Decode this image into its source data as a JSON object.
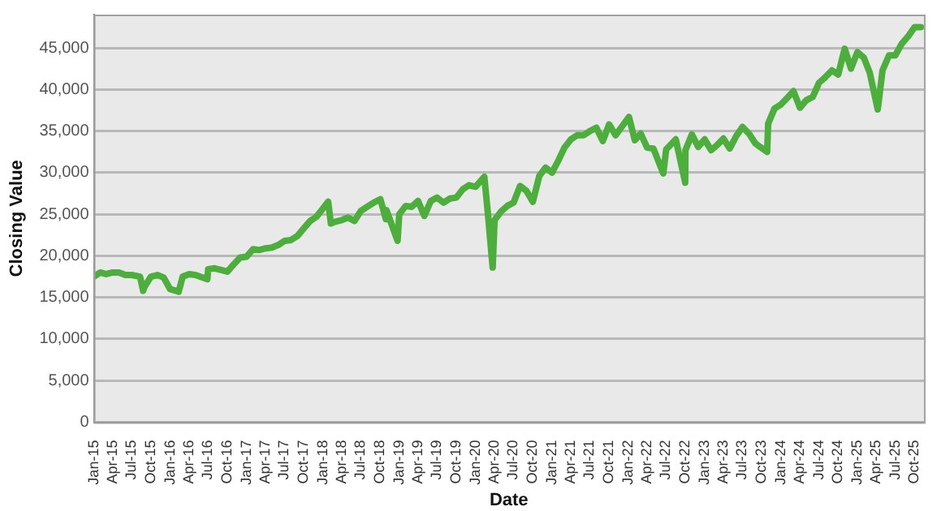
{
  "chart_data": {
    "type": "line",
    "xlabel": "Date",
    "ylabel": "Closing Value",
    "x": [
      "2015-01",
      "2015-02",
      "2015-03",
      "2015-04",
      "2015-05",
      "2015-06",
      "2015-07",
      "2015-08-10",
      "2015-08-25",
      "2015-09",
      "2015-10",
      "2015-11",
      "2015-12",
      "2016-01",
      "2016-02-11",
      "2016-03",
      "2016-04",
      "2016-05",
      "2016-06-27",
      "2016-07",
      "2016-08",
      "2016-09",
      "2016-10",
      "2016-11",
      "2016-12",
      "2017-01",
      "2017-02",
      "2017-03",
      "2017-04",
      "2017-05",
      "2017-06",
      "2017-07",
      "2017-08",
      "2017-09",
      "2017-10",
      "2017-11",
      "2017-12",
      "2018-01-26",
      "2018-02-08",
      "2018-03",
      "2018-04",
      "2018-05",
      "2018-06",
      "2018-07",
      "2018-08",
      "2018-09",
      "2018-10-03",
      "2018-10-29",
      "2018-11",
      "2018-12-24",
      "2019-01",
      "2019-02",
      "2019-03",
      "2019-04",
      "2019-05",
      "2019-06",
      "2019-07",
      "2019-08",
      "2019-09",
      "2019-10",
      "2019-11",
      "2019-12",
      "2020-01",
      "2020-02-12",
      "2020-02-28",
      "2020-03-23",
      "2020-04",
      "2020-05",
      "2020-06",
      "2020-07",
      "2020-08",
      "2020-09",
      "2020-10",
      "2020-11",
      "2020-12",
      "2021-01",
      "2021-02",
      "2021-03",
      "2021-04",
      "2021-05",
      "2021-06",
      "2021-07",
      "2021-08",
      "2021-09",
      "2021-10",
      "2021-11",
      "2022-01-04",
      "2022-02",
      "2022-03",
      "2022-04",
      "2022-05",
      "2022-06-17",
      "2022-07",
      "2022-08-16",
      "2022-09-30",
      "2022-10",
      "2022-11",
      "2022-12",
      "2023-01",
      "2023-02",
      "2023-03",
      "2023-04",
      "2023-05",
      "2023-06",
      "2023-07",
      "2023-08",
      "2023-09",
      "2023-10-27",
      "2023-11",
      "2023-12",
      "2024-01",
      "2024-02",
      "2024-03",
      "2024-04",
      "2024-05",
      "2024-06",
      "2024-07",
      "2024-08",
      "2024-09",
      "2024-10",
      "2024-11",
      "2024-12",
      "2025-01",
      "2025-02",
      "2025-03",
      "2025-04-08",
      "2025-05",
      "2025-06",
      "2025-07",
      "2025-08",
      "2025-09",
      "2025-10",
      "2025-11"
    ],
    "series": [
      {
        "color": "#4caf3c",
        "values": [
          17500,
          18000,
          17800,
          18000,
          18000,
          17700,
          17700,
          17500,
          15800,
          16300,
          17500,
          17700,
          17400,
          16000,
          15700,
          17500,
          17800,
          17700,
          17200,
          18400,
          18500,
          18300,
          18100,
          19000,
          19800,
          19900,
          20800,
          20700,
          20900,
          21000,
          21300,
          21800,
          21900,
          22400,
          23300,
          24200,
          24700,
          26500,
          23900,
          24100,
          24300,
          24600,
          24200,
          25400,
          25900,
          26400,
          26800,
          24400,
          25500,
          21800,
          25000,
          26000,
          25900,
          26600,
          24800,
          26600,
          27000,
          26400,
          26900,
          27000,
          28000,
          28500,
          28300,
          29500,
          25400,
          18600,
          24300,
          25300,
          26000,
          26400,
          28400,
          27800,
          26500,
          29600,
          30600,
          30000,
          31500,
          33000,
          34000,
          34500,
          34500,
          35000,
          35400,
          33800,
          35800,
          34500,
          36700,
          33900,
          34700,
          33000,
          32900,
          29900,
          32800,
          34000,
          28800,
          32700,
          34600,
          33100,
          34000,
          32700,
          33300,
          34100,
          32900,
          34400,
          35500,
          34700,
          33500,
          32500,
          35900,
          37700,
          38200,
          39000,
          39800,
          37800,
          38700,
          39100,
          40800,
          41500,
          42300,
          41800,
          44900,
          42500,
          44500,
          43800,
          42000,
          37600,
          42300,
          44100,
          44100,
          45500,
          46400,
          47500,
          47500
        ]
      }
    ],
    "xlim": [
      "2015-01",
      "2025-11-15"
    ],
    "xticks": [
      {
        "value": "2015-01",
        "label": "Jan-15"
      },
      {
        "value": "2015-04",
        "label": "Apr-15"
      },
      {
        "value": "2015-07",
        "label": "Jul-15"
      },
      {
        "value": "2015-10",
        "label": "Oct-15"
      },
      {
        "value": "2016-01",
        "label": "Jan-16"
      },
      {
        "value": "2016-04",
        "label": "Apr-16"
      },
      {
        "value": "2016-07",
        "label": "Jul-16"
      },
      {
        "value": "2016-10",
        "label": "Oct-16"
      },
      {
        "value": "2017-01",
        "label": "Jan-17"
      },
      {
        "value": "2017-04",
        "label": "Apr-17"
      },
      {
        "value": "2017-07",
        "label": "Jul-17"
      },
      {
        "value": "2017-10",
        "label": "Oct-17"
      },
      {
        "value": "2018-01",
        "label": "Jan-18"
      },
      {
        "value": "2018-04",
        "label": "Apr-18"
      },
      {
        "value": "2018-07",
        "label": "Jul-18"
      },
      {
        "value": "2018-10",
        "label": "Oct-18"
      },
      {
        "value": "2019-01",
        "label": "Jan-19"
      },
      {
        "value": "2019-04",
        "label": "Apr-19"
      },
      {
        "value": "2019-07",
        "label": "Jul-19"
      },
      {
        "value": "2019-10",
        "label": "Oct-19"
      },
      {
        "value": "2020-01",
        "label": "Jan-20"
      },
      {
        "value": "2020-04",
        "label": "Apr-20"
      },
      {
        "value": "2020-07",
        "label": "Jul-20"
      },
      {
        "value": "2020-10",
        "label": "Oct-20"
      },
      {
        "value": "2021-01",
        "label": "Jan-21"
      },
      {
        "value": "2021-04",
        "label": "Apr-21"
      },
      {
        "value": "2021-07",
        "label": "Jul-21"
      },
      {
        "value": "2021-10",
        "label": "Oct-21"
      },
      {
        "value": "2022-01",
        "label": "Jan-22"
      },
      {
        "value": "2022-04",
        "label": "Apr-22"
      },
      {
        "value": "2022-07",
        "label": "Jul-22"
      },
      {
        "value": "2022-10",
        "label": "Oct-22"
      },
      {
        "value": "2023-01",
        "label": "Jan-23"
      },
      {
        "value": "2023-04",
        "label": "Apr-23"
      },
      {
        "value": "2023-07",
        "label": "Jul-23"
      },
      {
        "value": "2023-10",
        "label": "Oct-23"
      },
      {
        "value": "2024-01",
        "label": "Jan-24"
      },
      {
        "value": "2024-04",
        "label": "Apr-24"
      },
      {
        "value": "2024-07",
        "label": "Jul-24"
      },
      {
        "value": "2024-10",
        "label": "Oct-24"
      },
      {
        "value": "2025-01",
        "label": "Jan-25"
      },
      {
        "value": "2025-04",
        "label": "Apr-25"
      },
      {
        "value": "2025-07",
        "label": "Jul-25"
      },
      {
        "value": "2025-10",
        "label": "Oct-25"
      }
    ],
    "ylim": [
      0,
      49000
    ],
    "yticks": [
      {
        "value": 0,
        "label": "0"
      },
      {
        "value": 5000,
        "label": "5,000"
      },
      {
        "value": 10000,
        "label": "10,000"
      },
      {
        "value": 15000,
        "label": "15,000"
      },
      {
        "value": 20000,
        "label": "20,000"
      },
      {
        "value": 25000,
        "label": "25,000"
      },
      {
        "value": 30000,
        "label": "30,000"
      },
      {
        "value": 35000,
        "label": "35,000"
      },
      {
        "value": 40000,
        "label": "40,000"
      },
      {
        "value": 45000,
        "label": "45,000"
      }
    ],
    "grid": "y",
    "legend": false,
    "marker": "none",
    "line_style": "solid"
  }
}
